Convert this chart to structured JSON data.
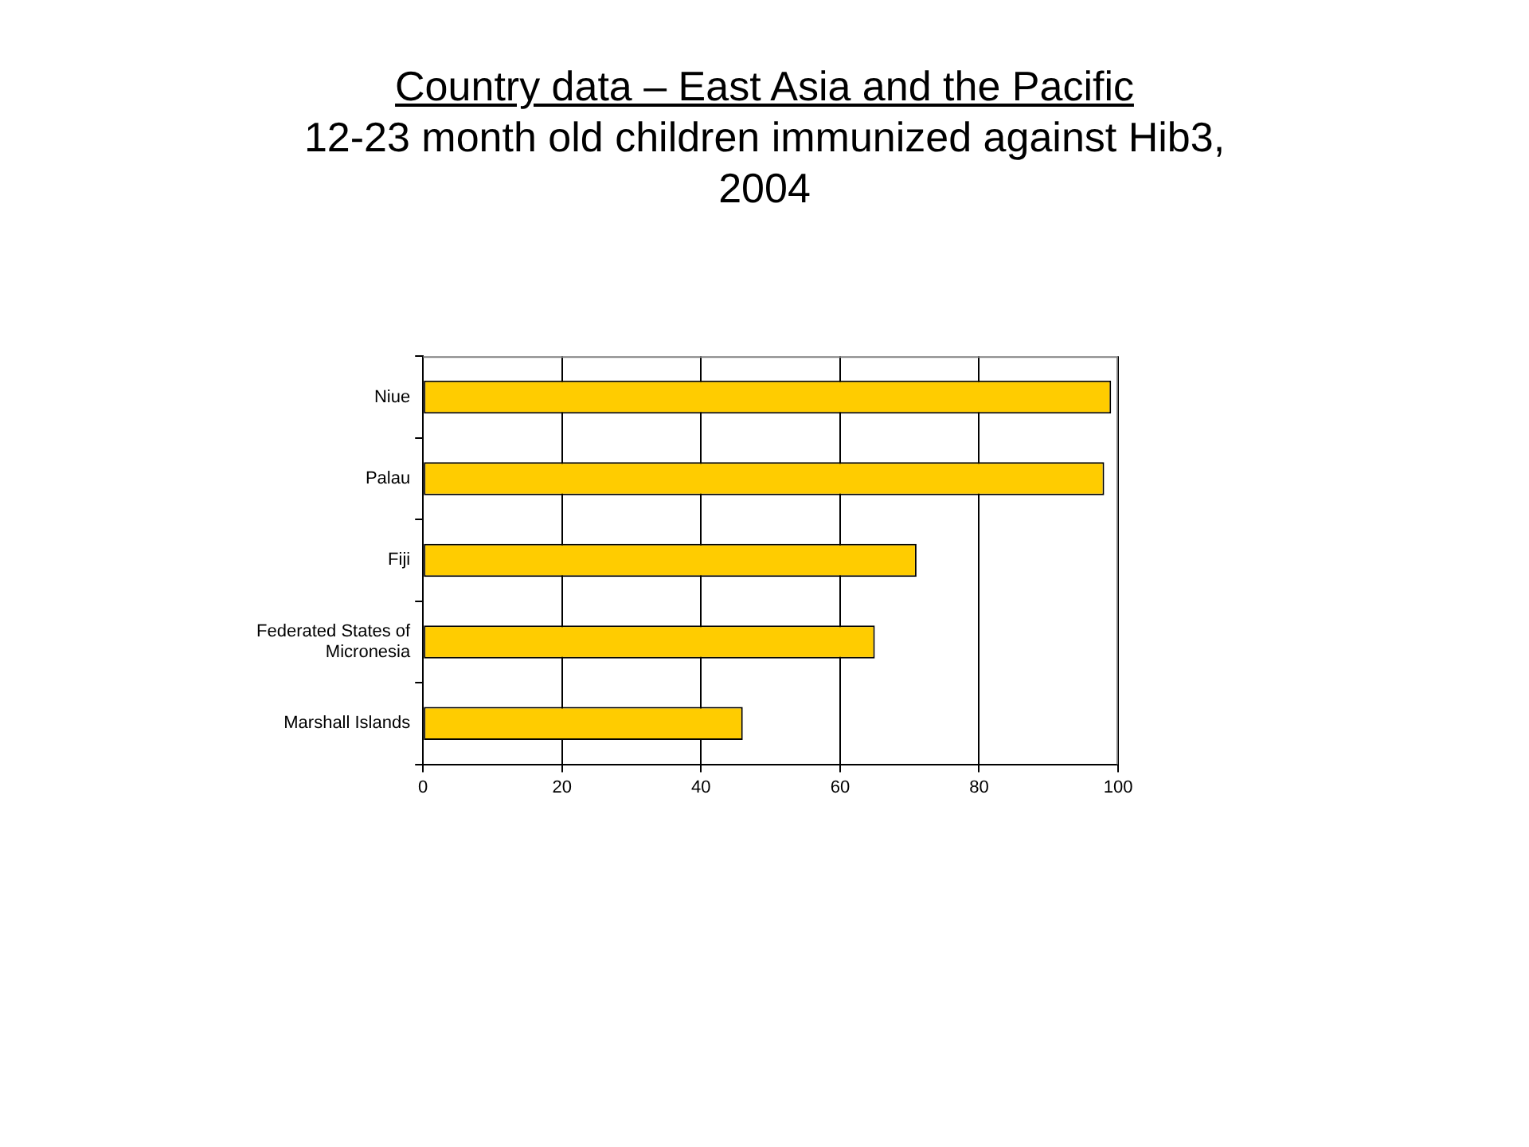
{
  "chart_data": {
    "type": "bar",
    "orientation": "horizontal",
    "title": "Country data – East Asia and the Pacific",
    "subtitle": "12-23 month old children immunized against Hib3, 2004",
    "categories": [
      "Niue",
      "Palau",
      "Fiji",
      "Federated States of Micronesia",
      "Marshall Islands"
    ],
    "values": [
      99,
      98,
      71,
      65,
      46
    ],
    "color": "#ffcc00",
    "xlim": [
      0,
      100
    ],
    "xticks": [
      0,
      20,
      40,
      60,
      80,
      100
    ],
    "grid": "x",
    "legend": false
  }
}
